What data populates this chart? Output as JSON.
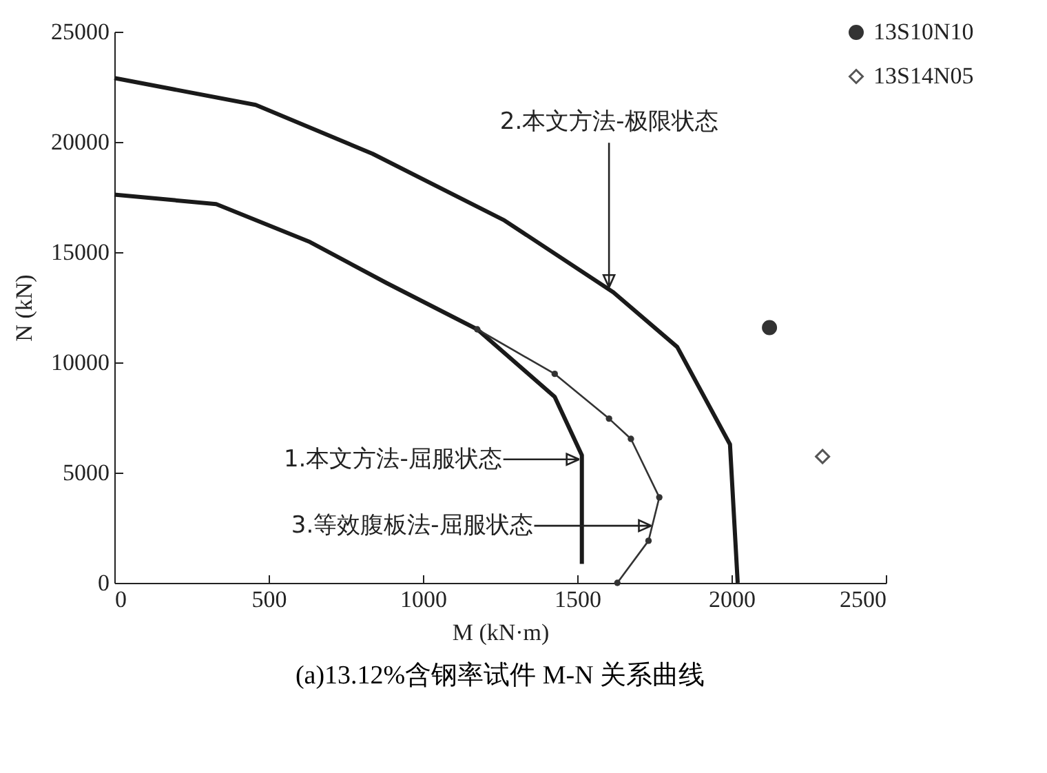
{
  "chart_data": {
    "type": "line",
    "title": "(a)13.12%含钢率试件 M-N 关系曲线",
    "xlabel": "M (kN·m)",
    "ylabel": "N (kN)",
    "xlim": [
      0,
      2500
    ],
    "xticks": [
      0,
      500,
      1000,
      1500,
      2000,
      2500
    ],
    "ylim": [
      0,
      25000
    ],
    "yticks": [
      0,
      5000,
      10000,
      15000,
      20000,
      25000
    ],
    "grid": false,
    "legend": "top right",
    "series": [
      {
        "type": "line",
        "color": "#1a1a1a",
        "marker": "none",
        "x": [
          0,
          330,
          634,
          881,
          1176,
          1427,
          1515,
          1515
        ],
        "values": [
          17610,
          17180,
          15460,
          13610,
          11500,
          8440,
          5790,
          860
        ]
      },
      {
        "type": "line",
        "color": "#1a1a1a",
        "marker": "none",
        "x": [
          0,
          458,
          837,
          1264,
          1617,
          1824,
          1995,
          2020
        ],
        "values": [
          22900,
          21680,
          19460,
          16440,
          13180,
          10700,
          6280,
          0
        ]
      },
      {
        "type": "line",
        "color": "#333333",
        "marker": "circle",
        "x": [
          1176,
          1427,
          1603,
          1674,
          1766,
          1731,
          1630
        ],
        "values": [
          11500,
          9480,
          7450,
          6530,
          3880,
          1910,
          0
        ]
      },
      {
        "type": "scatter",
        "name": "13S10N10",
        "color": "#333333",
        "marker": "circle",
        "x": [
          2123
        ],
        "values": [
          11580
        ]
      },
      {
        "type": "scatter",
        "name": "13S14N05",
        "color": "#555555",
        "marker": "diamond",
        "x": [
          2295
        ],
        "values": [
          5730
        ]
      }
    ],
    "annotations": [
      {
        "text": "2.本文方法-极限状态",
        "x": 1603,
        "y": 13400
      },
      {
        "text": "1.本文方法-屈服状态",
        "x": 1506,
        "y": 5600
      },
      {
        "text": "3.等效腹板法-屈服状态",
        "x": 1740,
        "y": 2590
      }
    ]
  }
}
